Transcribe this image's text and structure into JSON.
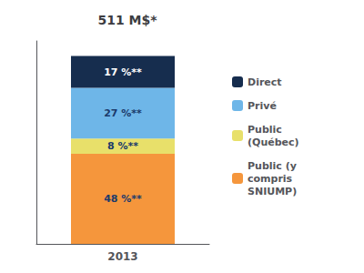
{
  "chart_data": {
    "type": "bar",
    "title": "511 M$*",
    "categories": [
      "2013"
    ],
    "stacked": true,
    "ylim": [
      0,
      108
    ],
    "yticks": [],
    "tick_labels": "x",
    "grid": false,
    "legend": "right",
    "data_labels": true,
    "series": [
      {
        "name": "Public (y\ncompris\nSNIUMP)",
        "color": "#F5963C",
        "values": [
          48
        ],
        "value_labels": [
          "48 %**"
        ]
      },
      {
        "name": "Public\n(Québec)",
        "color": "#E8E06A",
        "values": [
          8
        ],
        "value_labels": [
          "8 %**"
        ]
      },
      {
        "name": "Privé",
        "color": "#6EB6E8",
        "values": [
          27
        ],
        "value_labels": [
          "27 %**"
        ]
      },
      {
        "name": "Direct",
        "color": "#162D4E",
        "values": [
          17
        ],
        "value_labels": [
          "17 %**"
        ]
      }
    ]
  }
}
